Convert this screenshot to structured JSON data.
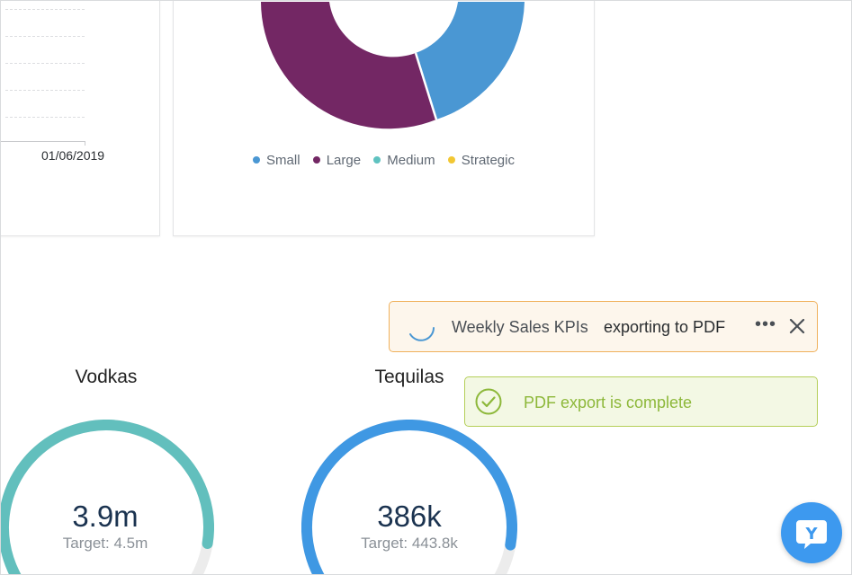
{
  "line_chart": {
    "x_tick_label": "01/06/2019"
  },
  "donut_chart": {
    "legend": [
      {
        "label": "Small",
        "color": "#4a97d3"
      },
      {
        "label": "Large",
        "color": "#732764"
      },
      {
        "label": "Medium",
        "color": "#5fc2c0"
      },
      {
        "label": "Strategic",
        "color": "#f2c733"
      }
    ]
  },
  "gauges": [
    {
      "title": "Vodkas",
      "value": "3.9m",
      "target": "Target: 4.5m",
      "fraction": 0.867,
      "color": "#62bfbd"
    },
    {
      "title": "Tequilas",
      "value": "386k",
      "target": "Target: 443.8k",
      "fraction": 0.87,
      "color": "#3f98e3"
    }
  ],
  "toasts": {
    "exporting": {
      "report_name": "Weekly Sales KPIs",
      "status": "exporting to PDF",
      "more_icon": "ellipsis-icon",
      "close_icon": "close-icon"
    },
    "complete": {
      "message": "PDF export is complete",
      "icon": "check-circle-icon"
    }
  },
  "chat_button": {
    "label": "Y"
  }
}
